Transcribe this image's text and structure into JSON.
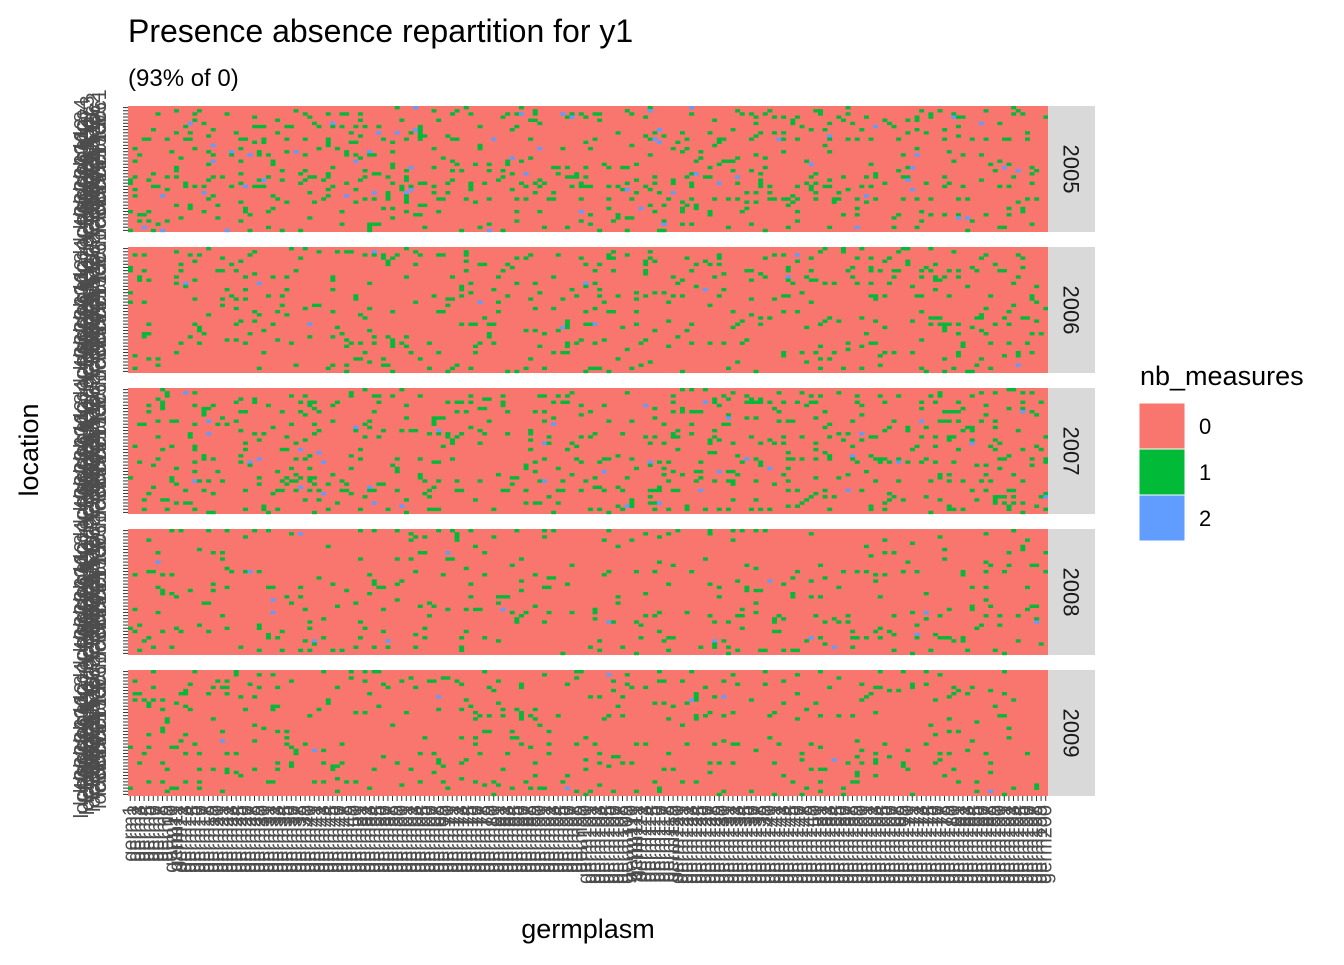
{
  "chart_data": {
    "type": "heatmap",
    "title": "Presence absence repartition for y1",
    "subtitle": "(93% of 0)",
    "xlabel": "germplasm",
    "ylabel": "location",
    "x_tick_prefix": "germ",
    "y_tick_prefix": "loc",
    "n_germplasm": 200,
    "n_locations": 40,
    "facets": [
      "2005",
      "2006",
      "2007",
      "2008",
      "2009"
    ],
    "facet_density": {
      "2005": {
        "p1": 0.085,
        "p2": 0.006
      },
      "2006": {
        "p1": 0.062,
        "p2": 0.001
      },
      "2007": {
        "p1": 0.075,
        "p2": 0.004
      },
      "2008": {
        "p1": 0.045,
        "p2": 0.002
      },
      "2009": {
        "p1": 0.05,
        "p2": 0.001
      }
    },
    "legend": {
      "title": "nb_measures",
      "position": "right",
      "entries": [
        {
          "label": "0",
          "color": "#F8766D"
        },
        {
          "label": "1",
          "color": "#00BA38"
        },
        {
          "label": "2",
          "color": "#619CFF"
        }
      ]
    },
    "colors": {
      "strip_bg": "#D9D9D9",
      "axis_text": "#4D4D4D",
      "tick": "#333333",
      "background": "#FFFFFF"
    },
    "grid": false
  }
}
